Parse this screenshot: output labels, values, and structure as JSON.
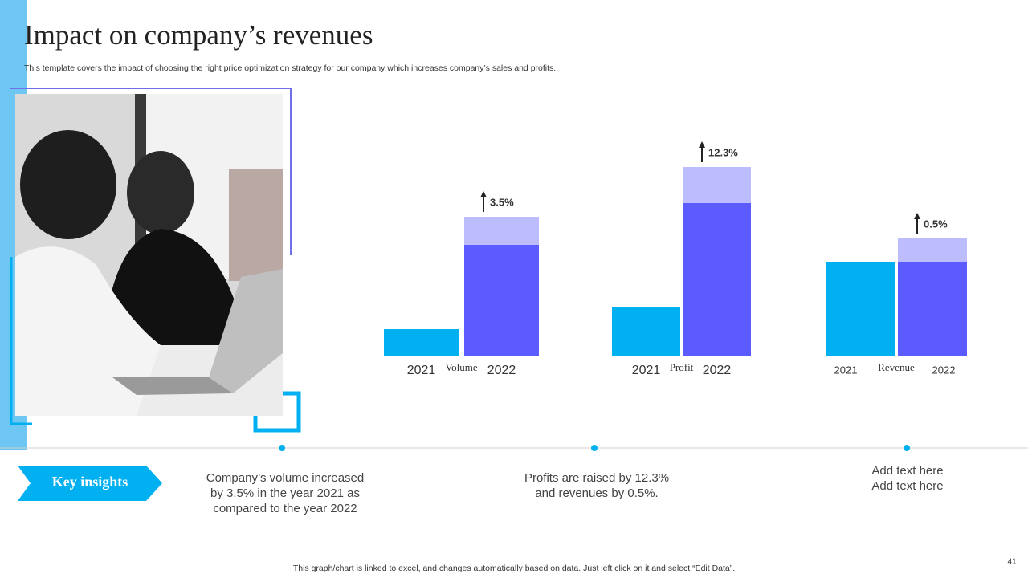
{
  "header": {
    "title": "Impact on company’s revenues",
    "subtitle": "This template covers the impact of choosing the right price optimization strategy for our company which increases company’s sales and profits."
  },
  "chart_data": [
    {
      "type": "bar",
      "stacked": true,
      "title": "Volume",
      "categories": [
        "2021",
        "2022"
      ],
      "annotation": "3.5%",
      "series": [
        {
          "color": "#00b0f0",
          "values": [
            33,
            null
          ]
        },
        {
          "color": "#5b5bff",
          "values": [
            null,
            138
          ]
        },
        {
          "color": "#bdbcff",
          "values": [
            null,
            35
          ]
        }
      ]
    },
    {
      "type": "bar",
      "stacked": true,
      "title": "Profit",
      "categories": [
        "2021",
        "2022"
      ],
      "annotation": "12.3%",
      "series": [
        {
          "color": "#00b0f0",
          "values": [
            60,
            null
          ]
        },
        {
          "color": "#5b5bff",
          "values": [
            null,
            190
          ]
        },
        {
          "color": "#bdbcff",
          "values": [
            null,
            45
          ]
        }
      ]
    },
    {
      "type": "bar",
      "stacked": true,
      "title": "Revenue",
      "categories": [
        "2021",
        "2022"
      ],
      "annotation": "0.5%",
      "series": [
        {
          "color": "#00b0f0",
          "values": [
            117,
            null
          ]
        },
        {
          "color": "#5b5bff",
          "values": [
            null,
            117
          ]
        },
        {
          "color": "#bdbcff",
          "values": [
            null,
            29
          ]
        }
      ]
    }
  ],
  "insights": {
    "label": "Key insights",
    "items": [
      [
        "Company’s volume increased",
        "by 3.5% in the year 2021 as",
        "compared to the year 2022"
      ],
      [
        "Profits are raised by 12.3%",
        "and revenues by 0.5%."
      ],
      [
        "Add text here",
        "Add text here"
      ]
    ]
  },
  "footer": {
    "note": "This graph/chart is linked to excel,  and changes automatically based on data. Just left click on it and select “Edit Data”.",
    "page": "41"
  }
}
